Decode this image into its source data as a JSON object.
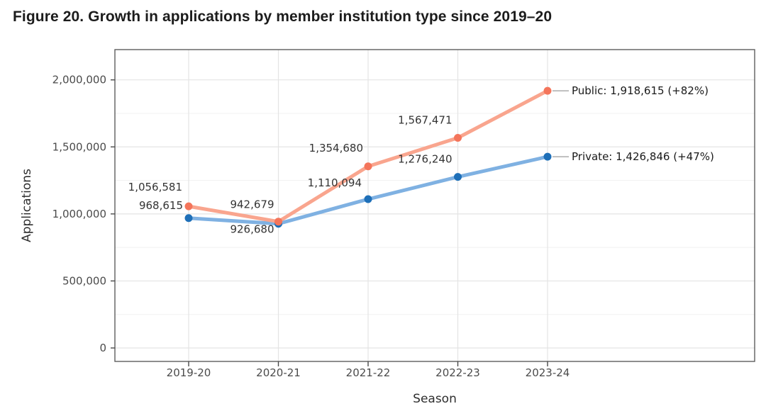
{
  "figure": {
    "title": "Figure 20. Growth in applications by member institution type since 2019–20"
  },
  "chart_data": {
    "type": "line",
    "title": "Figure 20. Growth in applications by member institution type since 2019–20",
    "xlabel": "Season",
    "ylabel": "Applications",
    "categories": [
      "2019-20",
      "2020-21",
      "2021-22",
      "2022-23",
      "2023-24"
    ],
    "series": [
      {
        "name": "Public",
        "values": [
          1056581,
          942679,
          1354680,
          1567471,
          1918615
        ],
        "point_labels": [
          "1,056,581",
          "942,679",
          "1,354,680",
          "1,567,471",
          ""
        ],
        "end_label": "Public: 1,918,615 (+82%)",
        "line_color": "#F9A58E",
        "point_color": "#F4755B"
      },
      {
        "name": "Private",
        "values": [
          968615,
          926680,
          1110094,
          1276240,
          1426846
        ],
        "point_labels": [
          "968,615",
          "926,680",
          "1,110,094",
          "1,276,240",
          ""
        ],
        "end_label": "Private: 1,426,846 (+47%)",
        "line_color": "#7FB1E2",
        "point_color": "#1E6FB8"
      }
    ],
    "ylim": [
      0,
      2000000
    ],
    "yticks": [
      0,
      500000,
      1000000,
      1500000,
      2000000
    ],
    "ytick_labels": [
      "0",
      "500,000",
      "1,000,000",
      "1,500,000",
      "2,000,000"
    ],
    "minor_yticks": [
      250000,
      750000,
      1250000,
      1750000
    ],
    "grid": true,
    "legend_position": "labels-at-line-end"
  },
  "style": {
    "background": "#FFFFFF",
    "grid_major": "#E4E4E4",
    "grid_minor": "#F1F1F1",
    "panel_border": "#5D5D5D",
    "tick_color": "#4A4A4A",
    "tick_label_color": "#4B4B4B",
    "data_label_color": "#333333",
    "end_label_color": "#1A1A1A",
    "leader_color": "#9B9B9B",
    "title_color": "#1C1C1C",
    "axis_title_color": "#2E2E2E"
  }
}
